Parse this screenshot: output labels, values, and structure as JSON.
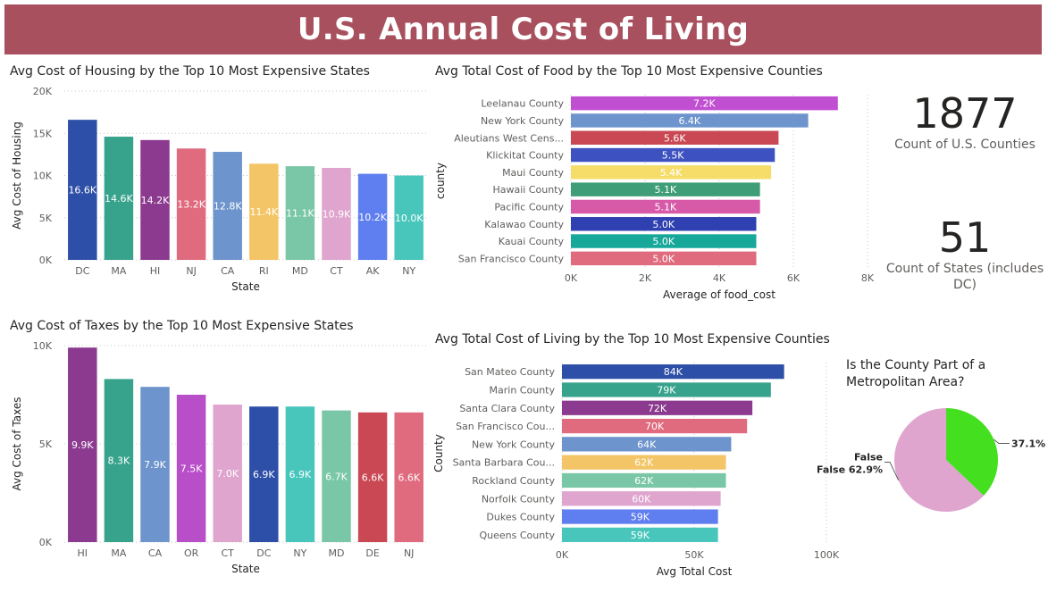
{
  "header": {
    "title": "U.S. Annual Cost of Living"
  },
  "colors": {
    "banner": "#a8505d",
    "palette": [
      "#2e4fa8",
      "#38a38c",
      "#8b3a8f",
      "#e06b7f",
      "#6d94cc",
      "#f3c566",
      "#79c7a7",
      "#dfa5cf",
      "#5f7ef0",
      "#48c6bc"
    ]
  },
  "charts": [
    {
      "type": "bar",
      "title": "Avg Cost of Housing by the Top 10 Most Expensive States",
      "xlabel": "State",
      "ylabel": "Avg Cost of Housing",
      "categories": [
        "DC",
        "MA",
        "HI",
        "NJ",
        "CA",
        "RI",
        "MD",
        "CT",
        "AK",
        "NY"
      ],
      "values": [
        16600,
        14600,
        14200,
        13200,
        12800,
        11400,
        11100,
        10900,
        10200,
        10000
      ],
      "data_labels": [
        "16.6K",
        "14.6K",
        "14.2K",
        "13.2K",
        "12.8K",
        "11.4K",
        "11.1K",
        "10.9K",
        "10.2K",
        "10.0K"
      ],
      "bar_colors": [
        "#2e4fa8",
        "#38a38c",
        "#8b3a8f",
        "#e06b7f",
        "#6d94cc",
        "#f3c566",
        "#79c7a7",
        "#dfa5cf",
        "#5f7ef0",
        "#48c6bc"
      ],
      "ylim": [
        0,
        20000
      ],
      "ticks": [
        0,
        5000,
        10000,
        15000,
        20000
      ],
      "tick_labels": [
        "0K",
        "5K",
        "10K",
        "15K",
        "20K"
      ],
      "grid": true
    },
    {
      "type": "bar",
      "title": "Avg Cost of Taxes by the Top 10 Most Expensive States",
      "xlabel": "State",
      "ylabel": "Avg Cost of Taxes",
      "categories": [
        "HI",
        "MA",
        "CA",
        "OR",
        "CT",
        "DC",
        "NY",
        "MD",
        "DE",
        "NJ"
      ],
      "values": [
        9900,
        8300,
        7900,
        7500,
        7000,
        6900,
        6900,
        6700,
        6600,
        6600
      ],
      "data_labels": [
        "9.9K",
        "8.3K",
        "7.9K",
        "7.5K",
        "7.0K",
        "6.9K",
        "6.9K",
        "6.7K",
        "6.6K",
        "6.6K"
      ],
      "bar_colors": [
        "#8b3a8f",
        "#38a38c",
        "#6d94cc",
        "#b84fc9",
        "#dfa5cf",
        "#2e4fa8",
        "#48c6bc",
        "#79c7a7",
        "#c94854",
        "#e06b7f"
      ],
      "ylim": [
        0,
        10000
      ],
      "ticks": [
        0,
        5000,
        10000
      ],
      "tick_labels": [
        "0K",
        "5K",
        "10K"
      ],
      "grid": true
    },
    {
      "type": "hbar",
      "title": "Avg Total Cost of Food by the Top 10 Most Expensive Counties",
      "xlabel": "Average of food_cost",
      "ylabel": "county",
      "categories": [
        "Leelanau County",
        "New York County",
        "Aleutians West Cens...",
        "Klickitat County",
        "Maui County",
        "Hawaii County",
        "Pacific County",
        "Kalawao County",
        "Kauai County",
        "San Francisco County"
      ],
      "values": [
        7200,
        6400,
        5600,
        5500,
        5400,
        5100,
        5100,
        5000,
        5000,
        5000
      ],
      "data_labels": [
        "7.2K",
        "6.4K",
        "5.6K",
        "5.5K",
        "5.4K",
        "5.1K",
        "5.1K",
        "5.0K",
        "5.0K",
        "5.0K"
      ],
      "bar_colors": [
        "#c04fd1",
        "#6d94cc",
        "#c94854",
        "#3d52c0",
        "#f6dd6a",
        "#3f9e78",
        "#d65aa8",
        "#2f40b0",
        "#18a89a",
        "#e06b7f"
      ],
      "xlim": [
        0,
        8000
      ],
      "ticks": [
        0,
        2000,
        4000,
        6000,
        8000
      ],
      "tick_labels": [
        "0K",
        "2K",
        "4K",
        "6K",
        "8K"
      ],
      "grid": true
    },
    {
      "type": "hbar",
      "title": "Avg Total Cost of Living by the Top 10 Most Expensive Counties",
      "xlabel": "Avg Total Cost",
      "ylabel": "County",
      "categories": [
        "San Mateo County",
        "Marin County",
        "Santa Clara County",
        "San Francisco Cou...",
        "New York County",
        "Santa Barbara Cou...",
        "Rockland County",
        "Norfolk County",
        "Dukes County",
        "Queens County"
      ],
      "values": [
        84000,
        79000,
        72000,
        70000,
        64000,
        62000,
        62000,
        60000,
        59000,
        59000
      ],
      "data_labels": [
        "84K",
        "79K",
        "72K",
        "70K",
        "64K",
        "62K",
        "62K",
        "60K",
        "59K",
        "59K"
      ],
      "bar_colors": [
        "#2e4fa8",
        "#38a38c",
        "#8b3a8f",
        "#e06b7f",
        "#6d94cc",
        "#f3c566",
        "#79c7a7",
        "#dfa5cf",
        "#5f7ef0",
        "#48c6bc"
      ],
      "xlim": [
        0,
        100000
      ],
      "ticks": [
        0,
        50000,
        100000
      ],
      "tick_labels": [
        "0K",
        "50K",
        "100K"
      ],
      "grid": true
    },
    {
      "type": "pie",
      "title": "Is the County Part of a Metropolitan Area?",
      "slices": [
        {
          "label": "True",
          "value": 37.1,
          "pct_label": "37.1%",
          "color": "#44e01f"
        },
        {
          "label": "False",
          "value": 62.9,
          "pct_label": "False 62.9%",
          "color": "#dfa5cf"
        }
      ]
    }
  ],
  "cards": [
    {
      "value": "1877",
      "label_lines": [
        "Count of U.S. Counties"
      ]
    },
    {
      "value": "51",
      "label_lines": [
        "Count of States (includes",
        "DC)"
      ]
    }
  ]
}
